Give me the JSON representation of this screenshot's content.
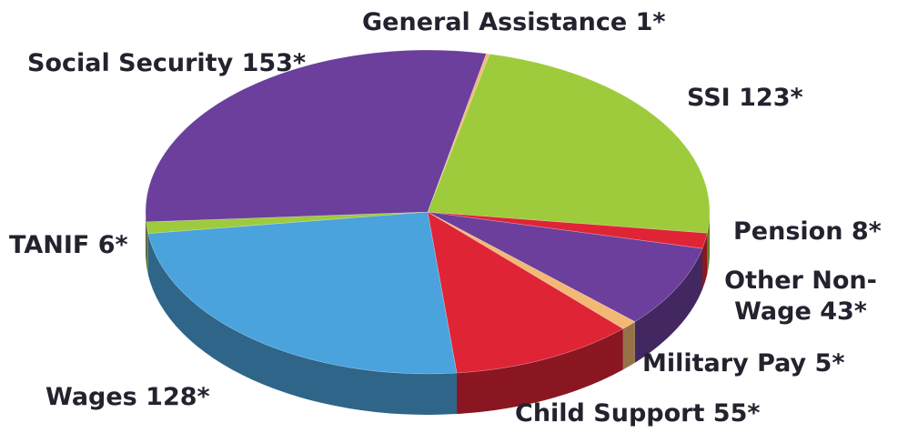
{
  "chart_data": {
    "type": "pie",
    "categories": [
      "General Assistance",
      "SSI",
      "Pension",
      "Other Non-Wage",
      "Military Pay",
      "Child Support",
      "Wages",
      "TANIF",
      "Social Security"
    ],
    "values": [
      1,
      123,
      8,
      43,
      5,
      55,
      128,
      6,
      153
    ],
    "value_labels": [
      "1*",
      "123*",
      "8*",
      "43*",
      "5*",
      "55*",
      "128*",
      "6*",
      "153*"
    ],
    "colors": [
      "#f3b874",
      "#9ecb3b",
      "#df2436",
      "#6b3f9b",
      "#f3b874",
      "#df2436",
      "#4aa3dc",
      "#9ecb3b",
      "#6b3f9b"
    ]
  }
}
